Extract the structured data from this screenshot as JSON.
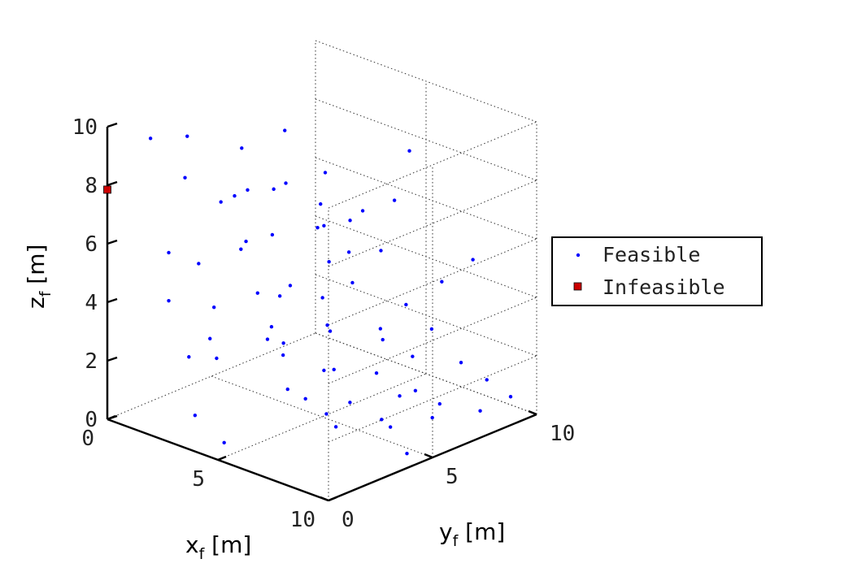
{
  "chart_data": {
    "type": "scatter",
    "dims": 3,
    "xlabel": "x",
    "xlabel_sub": "f",
    "xlabel_unit": " [m]",
    "ylabel": "y",
    "ylabel_sub": "f",
    "ylabel_unit": " [m]",
    "zlabel": "z",
    "zlabel_sub": "f",
    "zlabel_unit": " [m]",
    "xlim": [
      0,
      10
    ],
    "ylim": [
      0,
      10
    ],
    "zlim": [
      0,
      10
    ],
    "x_ticks": [
      "0",
      "5",
      "10"
    ],
    "y_ticks": [
      "0",
      "5",
      "10"
    ],
    "z_ticks": [
      "0",
      "2",
      "4",
      "6",
      "8",
      "10"
    ],
    "grid": true,
    "legend_position": "right",
    "series": [
      {
        "name": "Feasible",
        "marker": "dot",
        "color": "#0000ff",
        "points": [
          [
            1.2,
            0.8,
            9.7
          ],
          [
            2.1,
            1.5,
            8.4
          ],
          [
            0.6,
            3.2,
            8.9
          ],
          [
            2.5,
            2.8,
            7.3
          ],
          [
            1.8,
            4.2,
            6.9
          ],
          [
            3.0,
            1.2,
            5.8
          ],
          [
            0.9,
            5.5,
            7.9
          ],
          [
            2.8,
            5.6,
            7.2
          ],
          [
            1.5,
            6.4,
            6.4
          ],
          [
            4.2,
            2.2,
            6.6
          ],
          [
            3.6,
            4.1,
            6.1
          ],
          [
            0.4,
            8.1,
            7.6
          ],
          [
            2.3,
            7.8,
            5.7
          ],
          [
            5.1,
            1.8,
            5.2
          ],
          [
            4.6,
            3.9,
            4.7
          ],
          [
            1.1,
            9.3,
            6.0
          ],
          [
            3.3,
            6.9,
            5.5
          ],
          [
            6.2,
            1.3,
            4.5
          ],
          [
            5.4,
            4.6,
            4.3
          ],
          [
            2.6,
            8.9,
            4.9
          ],
          [
            7.1,
            0.9,
            3.9
          ],
          [
            6.5,
            3.8,
            3.7
          ],
          [
            4.4,
            7.1,
            3.8
          ],
          [
            3.9,
            9.0,
            4.2
          ],
          [
            7.8,
            2.6,
            3.1
          ],
          [
            8.3,
            0.7,
            2.8
          ],
          [
            6.9,
            5.9,
            2.9
          ],
          [
            5.6,
            8.4,
            3.0
          ],
          [
            8.9,
            2.2,
            2.4
          ],
          [
            7.4,
            6.8,
            2.2
          ],
          [
            9.3,
            1.1,
            2.0
          ],
          [
            6.1,
            9.1,
            2.1
          ],
          [
            8.7,
            4.8,
            1.8
          ],
          [
            9.6,
            3.4,
            1.4
          ],
          [
            7.9,
            8.6,
            1.6
          ],
          [
            9.1,
            6.3,
            1.2
          ],
          [
            8.5,
            9.2,
            1.0
          ],
          [
            9.8,
            7.5,
            0.8
          ],
          [
            9.2,
            9.6,
            0.5
          ],
          [
            2.0,
            3.0,
            3.5
          ],
          [
            4.0,
            1.0,
            2.9
          ],
          [
            1.4,
            6.8,
            2.6
          ],
          [
            3.1,
            4.4,
            2.3
          ],
          [
            5.8,
            2.5,
            1.9
          ],
          [
            2.7,
            7.7,
            1.7
          ],
          [
            4.9,
            5.2,
            1.5
          ],
          [
            6.8,
            3.3,
            1.1
          ],
          [
            3.5,
            9.4,
            1.3
          ],
          [
            5.3,
            7.3,
            0.9
          ],
          [
            7.6,
            5.1,
            0.6
          ],
          [
            6.4,
            8.0,
            0.4
          ],
          [
            8.2,
            6.9,
            0.3
          ],
          [
            9.5,
            4.3,
            0.2
          ],
          [
            1.7,
            9.8,
            3.3
          ],
          [
            0.3,
            6.1,
            4.1
          ],
          [
            4.7,
            8.8,
            6.2
          ],
          [
            3.8,
            2.7,
            8.1
          ],
          [
            5.9,
            6.0,
            7.0
          ],
          [
            7.2,
            3.0,
            6.5
          ],
          [
            8.0,
            1.6,
            8.3
          ],
          [
            2.4,
            0.4,
            4.6
          ],
          [
            6.6,
            7.5,
            8.8
          ],
          [
            7.5,
            8.1,
            4.4
          ],
          [
            9.0,
            8.0,
            5.6
          ],
          [
            0.8,
            2.1,
            5.3
          ],
          [
            1.9,
            1.9,
            2.1
          ],
          [
            3.4,
            0.6,
            0.9
          ],
          [
            5.0,
            0.3,
            0.5
          ],
          [
            0.5,
            4.4,
            1.6
          ],
          [
            1.0,
            7.4,
            0.7
          ]
        ]
      },
      {
        "name": "Infeasible",
        "marker": "square",
        "color": "#cc0000",
        "points": [
          [
            0,
            0,
            7.85
          ]
        ]
      }
    ]
  }
}
